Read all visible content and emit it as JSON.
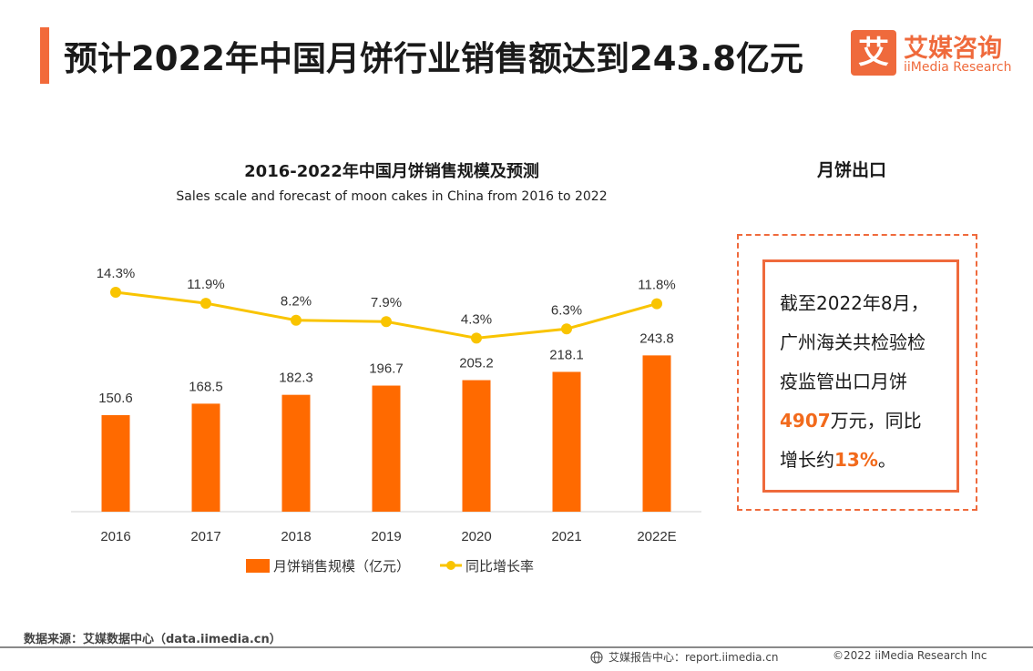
{
  "header": {
    "title": "预计2022年中国月饼行业销售额达到243.8亿元",
    "accent_color": "#f26a3a"
  },
  "logo": {
    "mark": "艾",
    "name_cn": "艾媒咨询",
    "name_en": "iiMedia Research"
  },
  "chart_data": {
    "type": "bar",
    "title": "2016-2022年中国月饼销售规模及预测",
    "subtitle": "Sales scale and forecast of moon cakes in China from 2016 to 2022",
    "categories": [
      "2016",
      "2017",
      "2018",
      "2019",
      "2020",
      "2021",
      "2022E"
    ],
    "series": [
      {
        "name": "月饼销售规模（亿元）",
        "type": "bar",
        "values": [
          150.6,
          168.5,
          182.3,
          196.7,
          205.2,
          218.1,
          243.8
        ],
        "labels": [
          "150.6",
          "168.5",
          "182.3",
          "196.7",
          "205.2",
          "218.1",
          "243.8"
        ],
        "color": "#ff6a00"
      },
      {
        "name": "同比增长率",
        "type": "line",
        "values": [
          14.3,
          11.9,
          8.2,
          7.9,
          4.3,
          6.3,
          11.8
        ],
        "labels": [
          "14.3%",
          "11.9%",
          "8.2%",
          "7.9%",
          "4.3%",
          "6.3%",
          "11.8%"
        ],
        "color": "#f9c400"
      }
    ],
    "bar_axis_range": [
      0,
      250
    ],
    "line_axis_range": [
      0,
      14.3
    ],
    "grid": false,
    "legend_position": "bottom"
  },
  "side": {
    "title": "月饼出口",
    "text_lines": [
      "截至2022年8月，",
      "广州海关共检验检",
      "疫监管出口月饼"
    ],
    "highlight_value": "4907",
    "after_value": "万元，同比",
    "growth_prefix": "增长约",
    "highlight_growth": "13%",
    "growth_suffix": "。"
  },
  "footer": {
    "source": "数据来源：艾媒数据中心（data.iimedia.cn）",
    "report": "艾媒报告中心：report.iimedia.cn",
    "copyright": "©2022 iiMedia Research Inc"
  }
}
